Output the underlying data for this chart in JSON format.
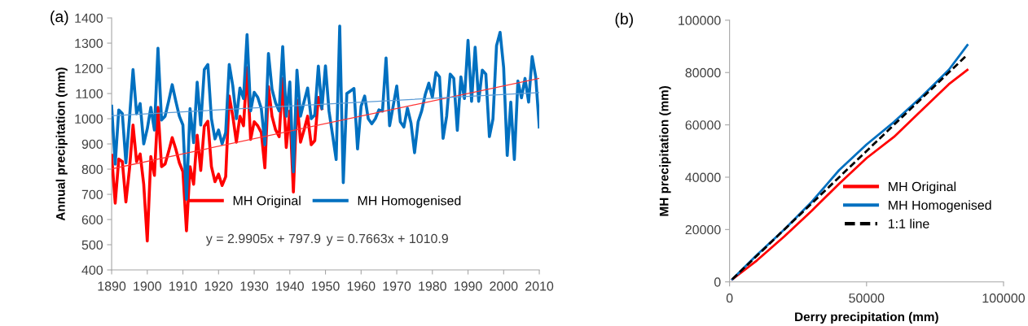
{
  "chart_data": [
    {
      "type": "line",
      "ylabel": "Annual precipitation (mm)",
      "xlim": [
        1890,
        2010
      ],
      "ylim": [
        400,
        1400
      ],
      "xticks": [
        1890,
        1900,
        1910,
        1920,
        1930,
        1940,
        1950,
        1960,
        1970,
        1980,
        1990,
        2000,
        2010
      ],
      "yticks": [
        400,
        500,
        600,
        700,
        800,
        900,
        1000,
        1100,
        1200,
        1300,
        1400
      ],
      "grid": false,
      "legend": "bottom",
      "line_style": "solid",
      "annotations": [
        "(a)",
        "y = 2.9905x + 797.9",
        "y = 0.7663x + 1010.9"
      ],
      "series": [
        {
          "name": "MH Original",
          "color": "#ff0000",
          "x": [
            1890,
            1891,
            1892,
            1893,
            1894,
            1895,
            1896,
            1897,
            1898,
            1899,
            1900,
            1901,
            1902,
            1903,
            1904,
            1905,
            1906,
            1907,
            1908,
            1909,
            1910,
            1911,
            1912,
            1913,
            1914,
            1915,
            1916,
            1917,
            1918,
            1919,
            1920,
            1921,
            1922,
            1923,
            1924,
            1925,
            1926,
            1927,
            1928,
            1929,
            1930,
            1931,
            1932,
            1933,
            1934,
            1935,
            1936,
            1937,
            1938,
            1939,
            1940,
            1941,
            1942,
            1943,
            1944,
            1945,
            1946,
            1947,
            1948,
            1949
          ],
          "values": [
            855,
            665,
            840,
            830,
            670,
            800,
            975,
            830,
            860,
            740,
            515,
            850,
            775,
            1045,
            810,
            820,
            870,
            925,
            880,
            825,
            790,
            555,
            810,
            740,
            935,
            795,
            970,
            990,
            810,
            750,
            780,
            735,
            770,
            1090,
            1010,
            907,
            1010,
            972,
            1203,
            918,
            988,
            972,
            945,
            805,
            1127,
            1010,
            956,
            929,
            1160,
            886,
            1031,
            709,
            1074,
            907,
            956,
            1010,
            897,
            913,
            1085,
            1040
          ]
        },
        {
          "name": "MH Homogenised",
          "color": "#0070c0",
          "x": [
            1890,
            1891,
            1892,
            1893,
            1894,
            1895,
            1896,
            1897,
            1898,
            1899,
            1900,
            1901,
            1902,
            1903,
            1904,
            1905,
            1906,
            1907,
            1908,
            1909,
            1910,
            1911,
            1912,
            1913,
            1914,
            1915,
            1916,
            1917,
            1918,
            1919,
            1920,
            1921,
            1922,
            1923,
            1924,
            1925,
            1926,
            1927,
            1928,
            1929,
            1930,
            1931,
            1932,
            1933,
            1934,
            1935,
            1936,
            1937,
            1938,
            1939,
            1940,
            1941,
            1942,
            1943,
            1944,
            1945,
            1946,
            1947,
            1948,
            1949,
            1950,
            1951,
            1952,
            1953,
            1954,
            1955,
            1956,
            1957,
            1958,
            1959,
            1960,
            1961,
            1962,
            1963,
            1964,
            1965,
            1966,
            1967,
            1968,
            1969,
            1970,
            1971,
            1972,
            1973,
            1974,
            1975,
            1976,
            1977,
            1978,
            1979,
            1980,
            1981,
            1982,
            1983,
            1984,
            1985,
            1986,
            1987,
            1988,
            1989,
            1990,
            1991,
            1992,
            1993,
            1994,
            1995,
            1996,
            1997,
            1998,
            1999,
            2000,
            2001,
            2002,
            2003,
            2004,
            2005,
            2006,
            2007,
            2008,
            2009,
            2010
          ],
          "values": [
            1050,
            820,
            1035,
            1020,
            825,
            1000,
            1195,
            1020,
            1060,
            900,
            960,
            1045,
            955,
            1280,
            995,
            1010,
            1070,
            1135,
            1070,
            1010,
            975,
            680,
            1040,
            905,
            1145,
            975,
            1195,
            1215,
            1000,
            920,
            955,
            900,
            945,
            1215,
            1130,
            1000,
            1122,
            1080,
            1334,
            1031,
            1105,
            1085,
            1040,
            897,
            1259,
            1117,
            1063,
            1031,
            1286,
            1010,
            1146,
            789,
            1193,
            1010,
            1068,
            1122,
            1000,
            1015,
            1209,
            1040,
            1210,
            1030,
            935,
            838,
            1368,
            746,
            1100,
            1110,
            1120,
            880,
            1050,
            1090,
            1000,
            980,
            1000,
            1035,
            1030,
            1241,
            972,
            1050,
            1130,
            988,
            967,
            1042,
            983,
            865,
            988,
            1031,
            1096,
            1141,
            1085,
            1184,
            1166,
            922,
            1010,
            1177,
            1160,
            954,
            1166,
            1080,
            1311,
            1069,
            1284,
            1069,
            1193,
            1177,
            929,
            999,
            1290,
            1343,
            1203,
            854,
            1066,
            838,
            1150,
            1083,
            1160,
            1066,
            1247,
            1166,
            967
          ]
        },
        {
          "color": "#ff3333",
          "x": [
            1890,
            2010
          ],
          "values": [
            801,
            1160
          ]
        },
        {
          "color": "#5b9bd5",
          "x": [
            1890,
            2010
          ],
          "values": [
            1012,
            1104
          ]
        }
      ]
    },
    {
      "type": "line",
      "xlabel": "Derry precipitation (mm)",
      "ylabel": "MH precipitation (mm)",
      "xlim": [
        0,
        100000
      ],
      "ylim": [
        0,
        100000
      ],
      "xticks": [
        0,
        50000,
        100000
      ],
      "yticks": [
        0,
        20000,
        40000,
        60000,
        80000,
        100000
      ],
      "grid": false,
      "legend": "bottom right",
      "annotations": [
        "(b)"
      ],
      "series": [
        {
          "name": "MH Original",
          "color": "#ff0000",
          "x": [
            1000,
            10000,
            20000,
            30000,
            40000,
            50000,
            60000,
            70000,
            80000,
            86800
          ],
          "values": [
            1000,
            8200,
            17400,
            27200,
            37500,
            47300,
            55400,
            65500,
            75500,
            81000
          ]
        },
        {
          "name": "MH Homogenised",
          "color": "#0070c0",
          "x": [
            1000,
            10000,
            20000,
            30000,
            40000,
            50000,
            60000,
            70000,
            80000,
            86800
          ],
          "values": [
            1000,
            10300,
            20000,
            30600,
            42700,
            52500,
            61100,
            70700,
            81000,
            90500
          ]
        },
        {
          "name": "1:1 line",
          "color": "#000000",
          "line_style": "dashed",
          "x": [
            1000,
            86800
          ],
          "values": [
            1000,
            86800
          ]
        }
      ]
    }
  ]
}
